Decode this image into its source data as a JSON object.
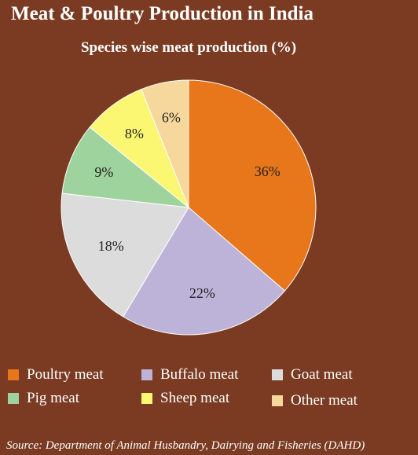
{
  "title": "Meat & Poultry Production in India",
  "source": "Source: Department of Animal Husbandry, Dairying and Fisheries (DAHD)",
  "chart_data": {
    "type": "pie",
    "title": "Species wise meat production (%)",
    "legend": "bottom",
    "slices": [
      {
        "name": "Poultry meat",
        "value": 36,
        "label": "36%",
        "color": "#e8761a"
      },
      {
        "name": "Buffalo meat",
        "value": 22,
        "label": "22%",
        "color": "#bdb3d8"
      },
      {
        "name": "Goat meat",
        "value": 18,
        "label": "18%",
        "color": "#dcdcdc"
      },
      {
        "name": "Pig meat",
        "value": 9,
        "label": "9%",
        "color": "#9fd39e"
      },
      {
        "name": "Sheep meat",
        "value": 8,
        "label": "8%",
        "color": "#fbf772"
      },
      {
        "name": "Other meat",
        "value": 6,
        "label": "6%",
        "color": "#f7d89c"
      }
    ]
  }
}
